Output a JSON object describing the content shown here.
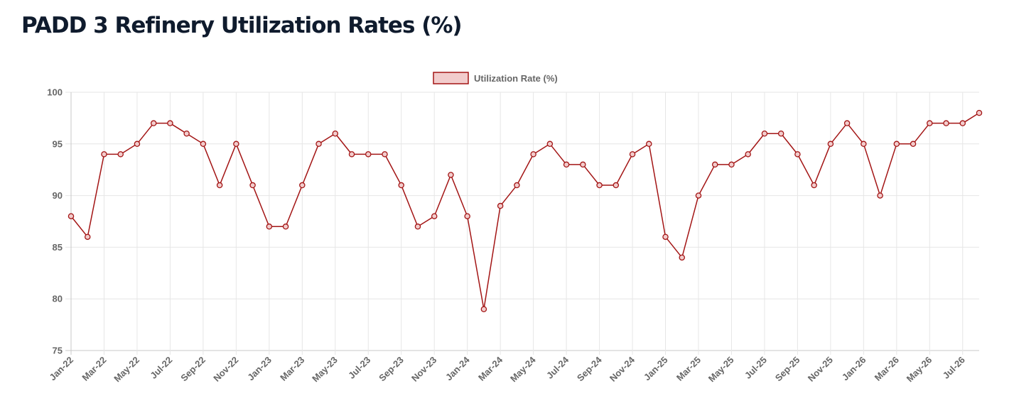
{
  "page": {
    "title": "PADD 3 Refinery Utilization Rates (%)"
  },
  "chart_data": {
    "type": "line",
    "title": "PADD 3 Refinery Utilization Rates (%)",
    "xlabel": "",
    "ylabel": "",
    "ylim": [
      75,
      100
    ],
    "yticks": [
      75,
      80,
      85,
      90,
      95,
      100
    ],
    "grid": true,
    "legend_position": "top-center",
    "categories": [
      "Jan-22",
      "Feb-22",
      "Mar-22",
      "Apr-22",
      "May-22",
      "Jun-22",
      "Jul-22",
      "Aug-22",
      "Sep-22",
      "Oct-22",
      "Nov-22",
      "Dec-22",
      "Jan-23",
      "Feb-23",
      "Mar-23",
      "Apr-23",
      "May-23",
      "Jun-23",
      "Jul-23",
      "Aug-23",
      "Sep-23",
      "Oct-23",
      "Nov-23",
      "Dec-23",
      "Jan-24",
      "Feb-24",
      "Mar-24",
      "Apr-24",
      "May-24",
      "Jun-24",
      "Jul-24",
      "Aug-24",
      "Sep-24",
      "Oct-24",
      "Nov-24",
      "Dec-24",
      "Jan-25",
      "Feb-25",
      "Mar-25",
      "Apr-25",
      "May-25",
      "Jun-25",
      "Jul-25",
      "Aug-25",
      "Sep-25",
      "Oct-25",
      "Nov-25",
      "Dec-25",
      "Jan-26",
      "Feb-26",
      "Mar-26",
      "Apr-26",
      "May-26",
      "Jun-26",
      "Jul-26",
      "Aug-26"
    ],
    "x_tick_labels": [
      "Jan-22",
      "Mar-22",
      "May-22",
      "Jul-22",
      "Sep-22",
      "Nov-22",
      "Jan-23",
      "Mar-23",
      "May-23",
      "Jul-23",
      "Sep-23",
      "Nov-23",
      "Jan-24",
      "Mar-24",
      "May-24",
      "Jul-24",
      "Sep-24",
      "Nov-24",
      "Jan-25",
      "Mar-25",
      "May-25",
      "Jul-25",
      "Sep-25",
      "Nov-25",
      "Jan-26",
      "Mar-26",
      "May-26",
      "Jul-26"
    ],
    "series": [
      {
        "name": "Utilization Rate (%)",
        "color": "#a31515",
        "fill": "#f2cccc",
        "values": [
          88,
          86,
          94,
          94,
          95,
          97,
          97,
          96,
          95,
          91,
          95,
          91,
          87,
          87,
          91,
          95,
          96,
          94,
          94,
          94,
          91,
          87,
          88,
          92,
          88,
          79,
          89,
          91,
          94,
          95,
          93,
          93,
          91,
          91,
          94,
          95,
          86,
          84,
          90,
          93,
          93,
          94,
          96,
          96,
          94,
          91,
          95,
          97,
          95,
          90,
          95,
          95,
          97,
          97,
          97,
          98
        ]
      }
    ]
  }
}
